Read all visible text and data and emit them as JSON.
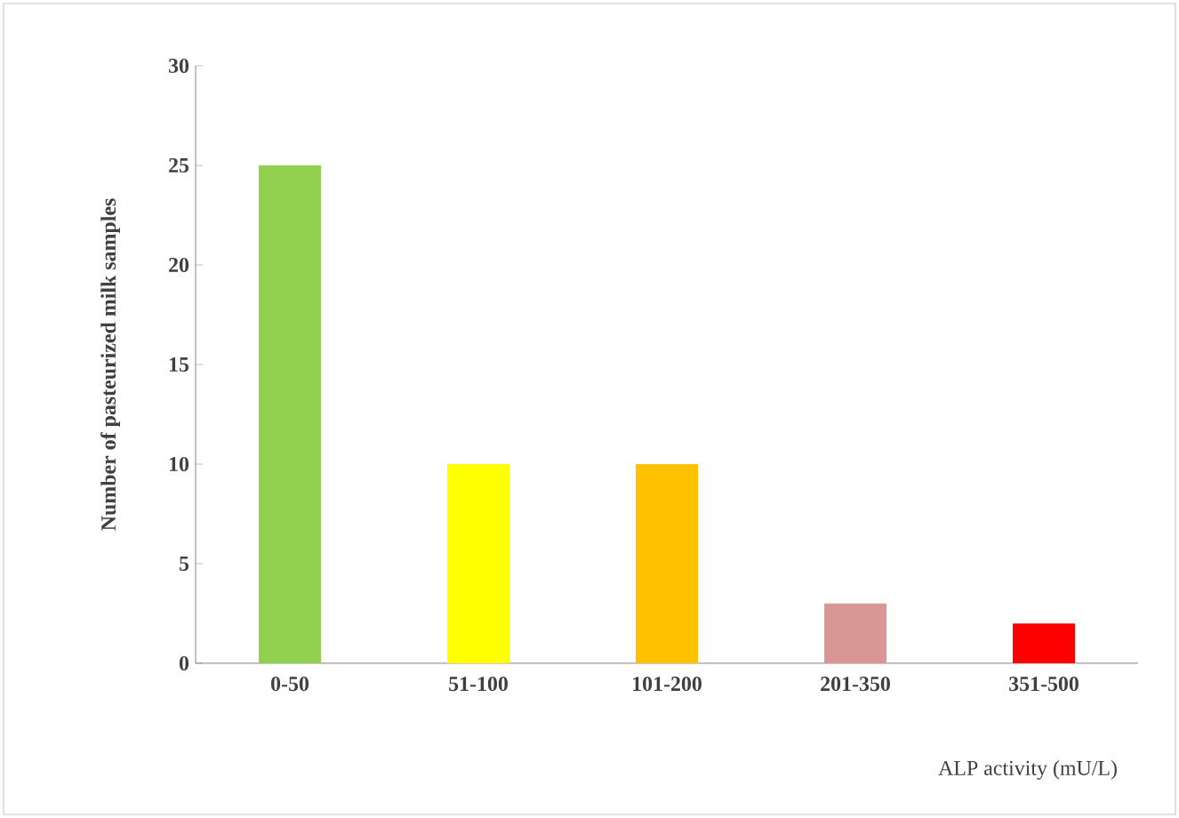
{
  "chart_data": {
    "type": "bar",
    "xlabel": "ALP activity (mU/L)",
    "ylabel": "Number of pasteurized milk samples",
    "categories": [
      "0-50",
      "51-100",
      "101-200",
      "201-350",
      "351-500"
    ],
    "values": [
      25,
      10,
      10,
      3,
      2
    ],
    "colors": [
      "#92d050",
      "#ffff00",
      "#ffc000",
      "#d99694",
      "#ff0000"
    ],
    "ylim": [
      0,
      30
    ],
    "yticks": [
      0,
      5,
      10,
      15,
      20,
      25,
      30
    ],
    "grid": false
  }
}
